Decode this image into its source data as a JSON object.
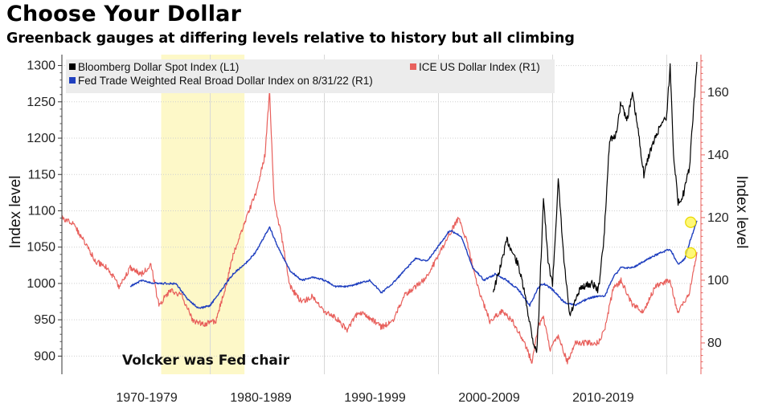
{
  "title": "Choose Your Dollar",
  "subtitle": "Greenback gauges at differing levels relative to history but all climbing",
  "chart_data": {
    "type": "line",
    "x_range": [
      1967.0,
      2023.0
    ],
    "x_category_labels": [
      "1970-1979",
      "1980-1989",
      "1990-1999",
      "2000-2009",
      "2010-2019"
    ],
    "left_axis": {
      "label": "Index level",
      "range": [
        875,
        1315
      ],
      "ticks": [
        900,
        950,
        1000,
        1050,
        1100,
        1150,
        1200,
        1250,
        1300
      ]
    },
    "right_axis": {
      "label": "Index level",
      "range": [
        70,
        172
      ],
      "ticks": [
        80,
        100,
        120,
        140,
        160
      ]
    },
    "legend": [
      {
        "key": "bbdxy",
        "label": "Bloomberg Dollar Spot Index  (L1)",
        "color": "#000000"
      },
      {
        "key": "dxy",
        "label": "ICE US Dollar Index (R1)",
        "color": "#e8605c"
      },
      {
        "key": "fed",
        "label": "Fed Trade Weighted Real Broad Dollar Index on 8/31/22 (R1)",
        "color": "#1f3fbf"
      }
    ],
    "annotation": {
      "text": "Volcker was Fed chair",
      "band": [
        1975.7,
        1983.0
      ],
      "color": "#fdf8c8"
    },
    "highlight_points": [
      {
        "series": "fed",
        "x": 2022.1,
        "y": 118.5
      },
      {
        "series": "dxy",
        "x": 2022.1,
        "y": 108.7
      }
    ],
    "series": [
      {
        "name": "Bloomberg Dollar Spot Index",
        "axis": "left",
        "color": "#000000",
        "x": [
          2004.8,
          2005.3,
          2006.0,
          2007.0,
          2007.5,
          2008.3,
          2008.6,
          2008.8,
          2009.2,
          2009.6,
          2010.0,
          2010.5,
          2011.0,
          2011.5,
          2012.5,
          2013.5,
          2014.0,
          2014.5,
          2015.0,
          2015.5,
          2016.0,
          2016.5,
          2017.0,
          2017.5,
          2018.0,
          2018.5,
          2019.0,
          2019.5,
          2020.0,
          2020.3,
          2020.6,
          2021.0,
          2021.5,
          2022.0,
          2022.4,
          2022.65
        ],
        "y": [
          990,
          1015,
          1060,
          1025,
          990,
          920,
          905,
          960,
          1120,
          1030,
          1000,
          1140,
          1030,
          955,
          995,
          1000,
          990,
          1060,
          1200,
          1200,
          1250,
          1225,
          1260,
          1210,
          1150,
          1180,
          1200,
          1220,
          1230,
          1300,
          1180,
          1110,
          1125,
          1160,
          1250,
          1305
        ]
      },
      {
        "name": "ICE US Dollar Index",
        "axis": "right",
        "color": "#e8605c",
        "x": [
          1967.0,
          1968.0,
          1969.0,
          1970.0,
          1971.0,
          1972.0,
          1973.0,
          1974.0,
          1974.8,
          1975.5,
          1976.5,
          1977.5,
          1978.5,
          1979.5,
          1980.5,
          1981.5,
          1982.0,
          1983.0,
          1984.0,
          1984.8,
          1985.2,
          1985.6,
          1986.2,
          1987.0,
          1988.0,
          1989.0,
          1990.0,
          1991.0,
          1992.0,
          1993.0,
          1994.0,
          1995.0,
          1996.0,
          1997.0,
          1998.0,
          1999.0,
          2000.0,
          2001.0,
          2001.8,
          2002.5,
          2003.5,
          2004.5,
          2005.5,
          2006.5,
          2007.5,
          2008.2,
          2008.8,
          2009.2,
          2009.8,
          2010.5,
          2011.3,
          2012.0,
          2013.0,
          2014.0,
          2014.6,
          2015.3,
          2016.0,
          2017.0,
          2018.0,
          2019.0,
          2020.3,
          2020.8,
          2021.0,
          2021.5,
          2022.0,
          2022.65
        ],
        "y": [
          120,
          118,
          112,
          106,
          104,
          98,
          104,
          102,
          105,
          92,
          97,
          95,
          87,
          86,
          87,
          100,
          108,
          118,
          128,
          140,
          160,
          125,
          115,
          98,
          93,
          95,
          90,
          88,
          84,
          90,
          88,
          85,
          87,
          95,
          98,
          101,
          108,
          115,
          120,
          112,
          97,
          87,
          90,
          87,
          80,
          74,
          86,
          88,
          78,
          82,
          74,
          80,
          80,
          80,
          85,
          97,
          100,
          92,
          90,
          98,
          100,
          92,
          90,
          93,
          96,
          109
        ]
      },
      {
        "name": "Fed Trade Weighted Real Broad Dollar Index",
        "axis": "right",
        "color": "#1f3fbf",
        "x": [
          1973.0,
          1974.0,
          1975.0,
          1976.0,
          1977.0,
          1978.0,
          1979.0,
          1980.0,
          1981.0,
          1982.0,
          1983.0,
          1984.0,
          1985.2,
          1986.0,
          1987.0,
          1988.0,
          1989.0,
          1990.0,
          1991.0,
          1992.0,
          1993.0,
          1994.0,
          1995.0,
          1996.0,
          1997.0,
          1998.0,
          1999.0,
          2000.0,
          2001.0,
          2002.0,
          2003.0,
          2004.0,
          2005.0,
          2006.0,
          2007.0,
          2008.0,
          2008.8,
          2009.2,
          2010.0,
          2011.0,
          2012.0,
          2013.0,
          2014.0,
          2014.6,
          2015.3,
          2016.0,
          2017.0,
          2018.0,
          2019.0,
          2020.3,
          2021.0,
          2021.6,
          2022.0,
          2022.65
        ],
        "y": [
          98,
          100,
          99,
          99,
          99,
          94,
          91,
          92,
          97,
          102,
          105,
          109,
          117,
          110,
          103,
          100,
          101,
          100,
          98,
          98,
          99,
          100,
          96,
          99,
          103,
          107,
          106,
          111,
          116,
          114,
          104,
          100,
          102,
          100,
          97,
          92,
          98,
          99,
          97,
          93,
          92,
          94,
          95,
          95,
          101,
          104,
          104,
          106,
          108,
          110,
          105,
          107,
          112,
          119
        ]
      }
    ]
  }
}
